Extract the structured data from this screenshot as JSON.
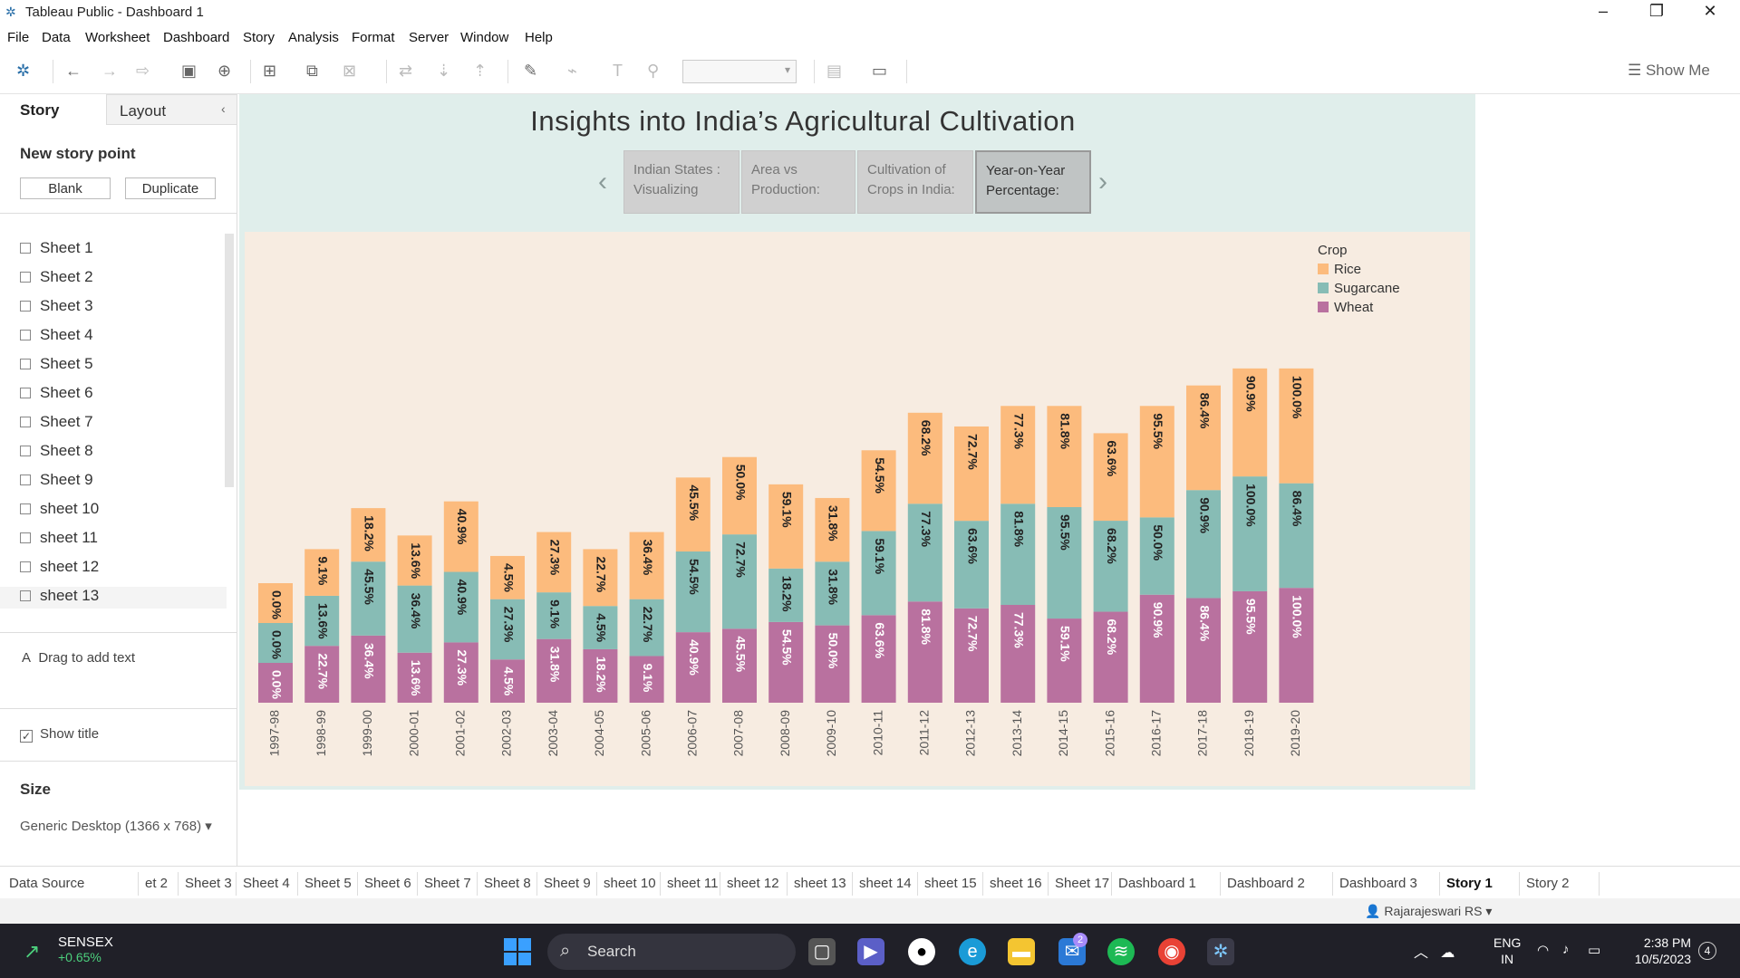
{
  "window": {
    "title": "Tableau Public - Dashboard 1"
  },
  "menu": [
    "File",
    "Data",
    "Worksheet",
    "Dashboard",
    "Story",
    "Analysis",
    "Format",
    "Server",
    "Window",
    "Help"
  ],
  "toolbar": {
    "show_me": "Show Me"
  },
  "side_panel": {
    "tab_story": "Story",
    "tab_layout": "Layout",
    "new_story_point": "New story point",
    "blank_button": "Blank",
    "duplicate_button": "Duplicate",
    "sheets": [
      "Sheet 1",
      "Sheet 2",
      "Sheet 3",
      "Sheet 4",
      "Sheet 5",
      "Sheet 6",
      "Sheet 7",
      "Sheet 8",
      "Sheet 9",
      "sheet 10",
      "sheet 11",
      "sheet 12",
      "sheet 13"
    ],
    "drag_text": "Drag to add text",
    "show_title": "Show title",
    "size_heading": "Size",
    "size_value": "Generic Desktop (1366 x 768)"
  },
  "story": {
    "title": "Insights into India’s Agricultural Cultivation",
    "points": [
      {
        "line1": "Indian States :",
        "line2": "Visualizing"
      },
      {
        "line1": "Area vs",
        "line2": "Production:"
      },
      {
        "line1": "Cultivation of",
        "line2": "Crops in India:"
      },
      {
        "line1": "Year-on-Year",
        "line2": "Percentage:"
      }
    ]
  },
  "chart_data": {
    "type": "bar",
    "stacked": true,
    "categories": [
      "1997-98",
      "1998-99",
      "1999-00",
      "2000-01",
      "2001-02",
      "2002-03",
      "2003-04",
      "2004-05",
      "2005-06",
      "2006-07",
      "2007-08",
      "2008-09",
      "2009-10",
      "2010-11",
      "2011-12",
      "2012-13",
      "2013-14",
      "2014-15",
      "2015-16",
      "2016-17",
      "2017-18",
      "2018-19",
      "2019-20"
    ],
    "series": [
      {
        "name": "Wheat",
        "color": "#b9719f",
        "values": [
          0.0,
          22.7,
          36.4,
          13.6,
          27.3,
          4.5,
          31.8,
          18.2,
          9.1,
          40.9,
          45.5,
          54.5,
          50.0,
          63.6,
          81.8,
          72.7,
          77.3,
          59.1,
          68.2,
          90.9,
          86.4,
          95.5,
          100.0
        ]
      },
      {
        "name": "Sugarcane",
        "color": "#87bcb5",
        "values": [
          0.0,
          13.6,
          45.5,
          36.4,
          40.9,
          27.3,
          9.1,
          4.5,
          22.7,
          54.5,
          72.7,
          18.2,
          31.8,
          59.1,
          77.3,
          63.6,
          81.8,
          95.5,
          68.2,
          50.0,
          90.9,
          100.0,
          86.4
        ]
      },
      {
        "name": "Rice",
        "color": "#fcbb7d",
        "values": [
          0.0,
          9.1,
          18.2,
          13.6,
          40.9,
          4.5,
          27.3,
          22.7,
          36.4,
          45.5,
          50.0,
          59.1,
          31.8,
          54.5,
          68.2,
          72.7,
          77.3,
          81.8,
          63.6,
          95.5,
          86.4,
          90.9,
          100.0
        ]
      }
    ],
    "legend_title": "Crop",
    "legend_position": "top-right",
    "value_format": "%"
  },
  "sheet_tabs": [
    "Data Source",
    "et 2",
    "Sheet 3",
    "Sheet 4",
    "Sheet 5",
    "Sheet 6",
    "Sheet 7",
    "Sheet 8",
    "Sheet 9",
    "sheet 10",
    "sheet 11",
    "sheet 12",
    "sheet 13",
    "sheet 14",
    "sheet 15",
    "sheet 16",
    "Sheet 17",
    "Dashboard 1",
    "Dashboard 2",
    "Dashboard 3",
    "Story 1",
    "Story 2"
  ],
  "status": {
    "user": "Rajarajeswari RS"
  },
  "taskbar": {
    "sensex_label": "SENSEX",
    "sensex_change": "+0.65%",
    "search": "Search",
    "lang_top": "ENG",
    "lang_bottom": "IN",
    "time": "2:38 PM",
    "date": "10/5/2023",
    "notifications": "4",
    "mail_badge": "2"
  }
}
